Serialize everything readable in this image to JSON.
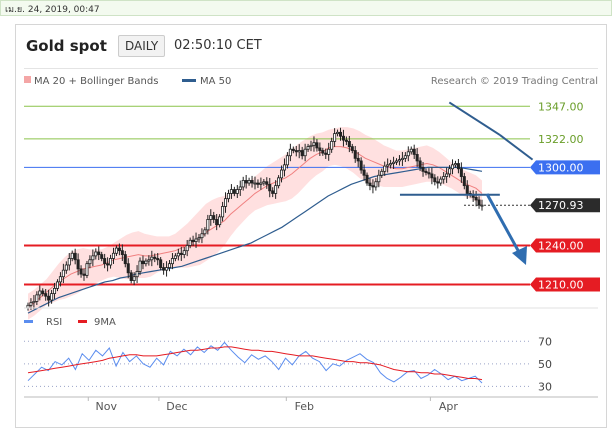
{
  "topbar": {
    "date_text": "เม.ย. 24, 2019, 00:47"
  },
  "header": {
    "title": "Gold spot",
    "timeframe": "DAILY",
    "time": "02:50:10 CET"
  },
  "legend": {
    "ma20_bb": "MA 20 + Bollinger Bands",
    "ma50": "MA 50",
    "credit": "Research © 2019 Trading Central"
  },
  "rsi_legend": {
    "rsi": "RSI",
    "ma9": "9MA"
  },
  "colors": {
    "ma20": "#f08080",
    "ma50": "#2f5d8f",
    "bands": "#ffd6d6",
    "green_level": "#8bc34a",
    "blue_level": "#3b6ff0",
    "red_level": "#e51c23",
    "arrow": "#2f6db0",
    "candle": "#222222"
  },
  "chart_data": [
    {
      "type": "candlestick",
      "xlabel": "",
      "ylabel": "",
      "x_ticks": [
        "Nov",
        "Dec",
        "Feb",
        "Apr"
      ],
      "ylim": [
        1195,
        1358
      ],
      "levels": [
        {
          "value": 1347,
          "label": "1347.00",
          "style": "green"
        },
        {
          "value": 1322,
          "label": "1322.00",
          "style": "green"
        },
        {
          "value": 1300,
          "label": "1300.00",
          "style": "blue"
        },
        {
          "value": 1270.93,
          "label": "1270.93",
          "style": "last"
        },
        {
          "value": 1240,
          "label": "1240.00",
          "style": "red"
        },
        {
          "value": 1210,
          "label": "1210.00",
          "style": "red"
        }
      ],
      "close": [
        1194,
        1196,
        1197,
        1202,
        1205,
        1203,
        1201,
        1198,
        1203,
        1207,
        1212,
        1216,
        1221,
        1225,
        1230,
        1234,
        1229,
        1222,
        1218,
        1217,
        1226,
        1229,
        1232,
        1235,
        1233,
        1230,
        1226,
        1225,
        1230,
        1234,
        1238,
        1236,
        1233,
        1226,
        1219,
        1213,
        1216,
        1220,
        1228,
        1226,
        1228,
        1229,
        1231,
        1230,
        1229,
        1223,
        1221,
        1223,
        1226,
        1230,
        1232,
        1234,
        1233,
        1236,
        1240,
        1244,
        1243,
        1245,
        1246,
        1249,
        1252,
        1260,
        1263,
        1260,
        1256,
        1262,
        1270,
        1276,
        1280,
        1283,
        1280,
        1283,
        1285,
        1290,
        1288,
        1290,
        1288,
        1288,
        1287,
        1288,
        1289,
        1287,
        1282,
        1280,
        1286,
        1292,
        1298,
        1302,
        1309,
        1314,
        1313,
        1312,
        1313,
        1309,
        1314,
        1316,
        1317,
        1319,
        1315,
        1313,
        1311,
        1310,
        1314,
        1320,
        1326,
        1327,
        1324,
        1321,
        1320,
        1316,
        1313,
        1307,
        1305,
        1298,
        1294,
        1288,
        1286,
        1285,
        1289,
        1294,
        1297,
        1301,
        1302,
        1303,
        1304,
        1305,
        1306,
        1307,
        1309,
        1312,
        1314,
        1310,
        1305,
        1300,
        1297,
        1296,
        1295,
        1292,
        1289,
        1288,
        1291,
        1293,
        1295,
        1299,
        1302,
        1303,
        1299,
        1293,
        1286,
        1280,
        1279,
        1277,
        1275,
        1271,
        1271
      ],
      "ma20": [
        1193,
        1196,
        1200,
        1204,
        1208,
        1212,
        1215,
        1218,
        1220,
        1222,
        1223,
        1224,
        1225,
        1227,
        1229,
        1230,
        1231,
        1232,
        1233,
        1232,
        1232,
        1233,
        1234,
        1235,
        1236,
        1238,
        1240,
        1243,
        1246,
        1250,
        1253,
        1256,
        1259,
        1264,
        1268,
        1272,
        1276,
        1280,
        1283,
        1286,
        1288,
        1290,
        1292,
        1295,
        1299,
        1303,
        1307,
        1310,
        1312,
        1315,
        1316,
        1316,
        1315,
        1313,
        1310,
        1307,
        1305,
        1303,
        1301,
        1300,
        1299,
        1299,
        1300,
        1301,
        1302,
        1303,
        1302,
        1300,
        1297,
        1294,
        1291,
        1288,
        1286,
        1284,
        1280
      ],
      "ma50": [
        1188,
        1191,
        1194,
        1197,
        1200,
        1202,
        1204,
        1206,
        1208,
        1210,
        1212,
        1213,
        1215,
        1216,
        1218,
        1219,
        1220,
        1221,
        1222,
        1223,
        1224,
        1226,
        1228,
        1230,
        1232,
        1234,
        1236,
        1238,
        1240,
        1242,
        1245,
        1248,
        1251,
        1254,
        1258,
        1262,
        1266,
        1270,
        1274,
        1278,
        1281,
        1284,
        1287,
        1289,
        1291,
        1293,
        1294,
        1295,
        1296,
        1297,
        1298,
        1299,
        1300,
        1300,
        1300,
        1300,
        1300,
        1299,
        1298,
        1297
      ],
      "bb_width": [
        10,
        10,
        10,
        10,
        12,
        14,
        16,
        17,
        17,
        16,
        14,
        13,
        12,
        12,
        13,
        15,
        17,
        18,
        18,
        17,
        16,
        14,
        13,
        12,
        13,
        15,
        17,
        19,
        21,
        22,
        22,
        21,
        19,
        17,
        15,
        14,
        13,
        13,
        14,
        15,
        16,
        17,
        18,
        19,
        19,
        18,
        17,
        16,
        15,
        14,
        14,
        15,
        16,
        17,
        18,
        18,
        18,
        17,
        16,
        15,
        14,
        14,
        14,
        14,
        14,
        14,
        13,
        12,
        11,
        10,
        10,
        10,
        10,
        10,
        10
      ],
      "trendlines": [
        {
          "from": [
            0.741,
            1350
          ],
          "to": [
            0.829,
            1325
          ],
          "color": "#2f5d8f"
        },
        {
          "from": [
            0.829,
            1325
          ],
          "to": [
            0.886,
            1306
          ],
          "color": "#2f5d8f"
        },
        {
          "from": [
            0.655,
            1279
          ],
          "to": [
            0.829,
            1279
          ],
          "color": "#2f5d8f"
        }
      ]
    },
    {
      "type": "line",
      "xlabel": "",
      "ylabel": "",
      "ylim": [
        25,
        80
      ],
      "y_ticks": [
        30,
        50,
        70
      ],
      "series": [
        {
          "name": "RSI",
          "values": [
            35,
            41,
            47,
            44,
            52,
            49,
            55,
            45,
            59,
            53,
            62,
            57,
            64,
            48,
            60,
            52,
            57,
            50,
            47,
            55,
            49,
            61,
            57,
            63,
            58,
            65,
            60,
            66,
            62,
            69,
            62,
            56,
            51,
            58,
            54,
            57,
            52,
            45,
            55,
            49,
            57,
            61,
            55,
            52,
            44,
            50,
            48,
            53,
            56,
            59,
            54,
            51,
            42,
            37,
            34,
            38,
            43,
            44,
            37,
            40,
            45,
            41,
            36,
            39,
            35,
            37,
            39,
            33
          ]
        },
        {
          "name": "9MA",
          "values": [
            42,
            43,
            44,
            45,
            46,
            47,
            48,
            49,
            50,
            51,
            52,
            53,
            55,
            56,
            57,
            58,
            58,
            57,
            57,
            57,
            58,
            59,
            60,
            61,
            62,
            62,
            63,
            64,
            64,
            65,
            65,
            64,
            63,
            62,
            62,
            61,
            61,
            60,
            59,
            58,
            57,
            57,
            57,
            56,
            55,
            54,
            53,
            52,
            52,
            51,
            51,
            50,
            49,
            47,
            45,
            44,
            43,
            43,
            42,
            42,
            41,
            41,
            40,
            39,
            38,
            37,
            37,
            36
          ]
        }
      ]
    }
  ]
}
